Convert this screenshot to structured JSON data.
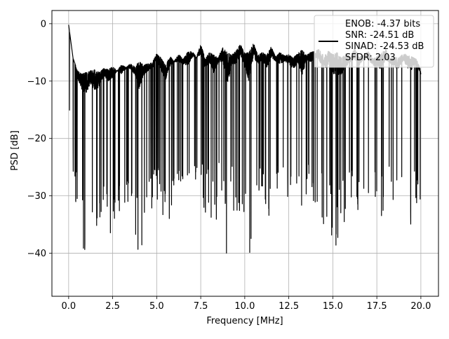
{
  "chart_data": {
    "type": "line",
    "title": "",
    "xlabel": "Frequency [MHz]",
    "ylabel": "PSD [dB]",
    "xlim": [
      -0.95,
      21.0
    ],
    "ylim": [
      -47.5,
      2.3
    ],
    "xticks": [
      0.0,
      2.5,
      5.0,
      7.5,
      10.0,
      12.5,
      15.0,
      17.5,
      20.0
    ],
    "xtick_labels": [
      "0.0",
      "2.5",
      "5.0",
      "7.5",
      "10.0",
      "12.5",
      "15.0",
      "17.5",
      "20.0"
    ],
    "yticks": [
      0,
      -10,
      -20,
      -30,
      -40
    ],
    "ytick_labels": [
      "0",
      "−10",
      "−20",
      "−30",
      "−40"
    ],
    "grid": true,
    "legend_position": "upper right",
    "series": [
      {
        "name": "ENOB: -4.37 bits\nSNR: -24.51 dB\nSINAD: -24.53 dB\nSFDR: 2.03",
        "color": "#000000",
        "style": "noise-band",
        "x": [
          0.0,
          0.25,
          0.5,
          0.75,
          1.0,
          1.25,
          1.5,
          1.75,
          2.0,
          2.25,
          2.5,
          2.75,
          3.0,
          3.25,
          3.5,
          3.75,
          4.0,
          4.25,
          4.5,
          4.75,
          5.0,
          5.25,
          5.5,
          5.75,
          6.0,
          6.25,
          6.5,
          6.75,
          7.0,
          7.25,
          7.5,
          7.75,
          8.0,
          8.25,
          8.5,
          8.75,
          9.0,
          9.25,
          9.5,
          9.75,
          10.0,
          10.25,
          10.5,
          10.75,
          11.0,
          11.25,
          11.5,
          11.75,
          12.0,
          12.25,
          12.5,
          12.75,
          13.0,
          13.25,
          13.5,
          13.75,
          14.0,
          14.25,
          14.5,
          14.75,
          15.0,
          15.25,
          15.5,
          15.75,
          16.0,
          16.25,
          16.5,
          16.75,
          17.0,
          17.25,
          17.5,
          17.75,
          18.0,
          18.25,
          18.5,
          18.75,
          19.0,
          19.25,
          19.5,
          19.75,
          20.0
        ],
        "upper": [
          -0.2,
          -6.0,
          -8.2,
          -8.8,
          -8.5,
          -8.2,
          -8.0,
          -8.5,
          -7.8,
          -8.0,
          -7.5,
          -8.2,
          -7.2,
          -7.6,
          -7.0,
          -7.5,
          -6.6,
          -7.2,
          -7.0,
          -6.8,
          -5.2,
          -6.0,
          -7.3,
          -5.7,
          -6.5,
          -5.3,
          -6.2,
          -5.0,
          -4.8,
          -5.8,
          -3.6,
          -6.0,
          -5.0,
          -5.5,
          -5.8,
          -4.2,
          -5.0,
          -5.5,
          -4.8,
          -3.6,
          -5.2,
          -5.0,
          -3.4,
          -5.5,
          -5.0,
          -5.5,
          -4.0,
          -5.8,
          -5.0,
          -5.6,
          -5.4,
          -6.0,
          -5.2,
          -4.6,
          -5.5,
          -5.0,
          -4.8,
          -4.4,
          -5.5,
          -4.8,
          -5.4,
          -5.0,
          -6.0,
          -5.2,
          -5.7,
          -4.3,
          -5.8,
          -5.5,
          -4.8,
          -6.0,
          -5.8,
          -5.2,
          -4.4,
          -6.0,
          -5.8,
          -6.0,
          -5.2,
          -5.5,
          -5.8,
          -6.2,
          -8.2
        ],
        "lower": [
          -15.0,
          -27.0,
          -35.0,
          -40.0,
          -41.8,
          -38.0,
          -41.2,
          -39.0,
          -35.0,
          -37.0,
          -36.5,
          -32.0,
          -35.0,
          -32.0,
          -33.0,
          -35.0,
          -42.8,
          -36.0,
          -34.0,
          -33.0,
          -31.0,
          -35.0,
          -38.0,
          -34.0,
          -30.5,
          -33.0,
          -32.0,
          -35.0,
          -31.5,
          -30.0,
          -32.0,
          -34.0,
          -33.5,
          -37.5,
          -32.0,
          -34.0,
          -45.5,
          -33.0,
          -35.0,
          -32.0,
          -35.5,
          -43.0,
          -33.0,
          -34.0,
          -32.0,
          -35.0,
          -33.0,
          -31.5,
          -34.0,
          -32.0,
          -33.0,
          -35.0,
          -33.0,
          -40.0,
          -32.0,
          -33.0,
          -32.0,
          -34.0,
          -35.0,
          -36.0,
          -38.0,
          -39.0,
          -37.0,
          -35.0,
          -32.0,
          -33.0,
          -34.0,
          -31.0,
          -32.0,
          -33.0,
          -34.0,
          -36.0,
          -33.0,
          -32.0,
          -34.0,
          -35.0,
          -32.0,
          -35.0,
          -35.5,
          -32.0,
          -33.5
        ]
      }
    ]
  }
}
